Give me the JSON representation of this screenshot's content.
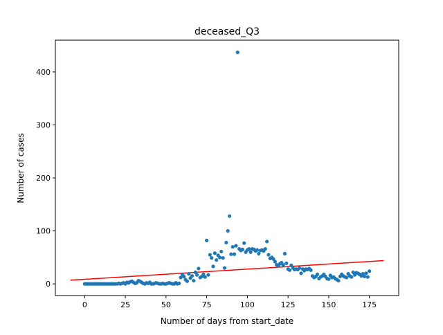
{
  "chart_data": {
    "type": "scatter",
    "title": "deceased_Q3",
    "xlabel": "Number of days from start_date",
    "ylabel": "Number of cases",
    "xlim": [
      -18,
      193
    ],
    "ylim": [
      -22,
      460
    ],
    "xticks": [
      0,
      25,
      50,
      75,
      100,
      125,
      150,
      175
    ],
    "yticks": [
      0,
      100,
      200,
      300,
      400
    ],
    "grid": false,
    "legend": "none",
    "colors": {
      "points": "#1f77b4",
      "trendline": "#ff0000",
      "axes": "#000000"
    },
    "series": [
      {
        "kind": "points",
        "x": [
          0,
          1,
          2,
          3,
          4,
          5,
          6,
          7,
          8,
          9,
          10,
          11,
          12,
          13,
          14,
          15,
          16,
          17,
          18,
          19,
          20,
          21,
          22,
          23,
          24,
          25,
          26,
          27,
          28,
          29,
          30,
          31,
          32,
          33,
          34,
          35,
          36,
          37,
          38,
          39,
          40,
          41,
          42,
          43,
          44,
          45,
          46,
          47,
          48,
          49,
          50,
          51,
          52,
          53,
          54,
          55,
          56,
          57,
          58,
          59,
          60,
          61,
          62,
          63,
          64,
          65,
          66,
          67,
          68,
          69,
          70,
          71,
          72,
          73,
          74,
          75,
          76,
          77,
          78,
          79,
          80,
          81,
          82,
          83,
          84,
          85,
          86,
          87,
          88,
          89,
          90,
          91,
          92,
          93,
          94,
          95,
          96,
          97,
          98,
          99,
          100,
          101,
          102,
          103,
          104,
          105,
          106,
          107,
          108,
          109,
          110,
          111,
          112,
          113,
          114,
          115,
          116,
          117,
          118,
          119,
          120,
          121,
          122,
          123,
          124,
          125,
          126,
          127,
          128,
          129,
          130,
          131,
          132,
          133,
          134,
          135,
          136,
          137,
          138,
          139,
          140,
          141,
          142,
          143,
          144,
          145,
          146,
          147,
          148,
          149,
          150,
          151,
          152,
          153,
          154,
          155,
          156,
          157,
          158,
          159,
          160,
          161,
          162,
          163,
          164,
          165,
          166,
          167,
          168,
          169,
          170,
          171,
          172,
          173,
          174,
          175
        ],
        "y": [
          0,
          0,
          0,
          0,
          0,
          0,
          0,
          0,
          0,
          0,
          0,
          0,
          0,
          0,
          0,
          0,
          0,
          0,
          0,
          0,
          0,
          1,
          0,
          1,
          2,
          0,
          3,
          2,
          4,
          5,
          3,
          1,
          2,
          6,
          5,
          3,
          1,
          0,
          2,
          1,
          3,
          0,
          0,
          1,
          2,
          1,
          0,
          0,
          1,
          0,
          0,
          1,
          2,
          1,
          0,
          0,
          2,
          0,
          1,
          12,
          18,
          14,
          8,
          5,
          19,
          11,
          15,
          6,
          22,
          17,
          29,
          12,
          14,
          18,
          13,
          82,
          17,
          55,
          49,
          33,
          58,
          45,
          54,
          50,
          61,
          49,
          30,
          78,
          100,
          128,
          56,
          70,
          56,
          72,
          437,
          66,
          63,
          65,
          77,
          60,
          64,
          66,
          60,
          66,
          65,
          62,
          64,
          57,
          63,
          64,
          62,
          66,
          80,
          55,
          48,
          50,
          47,
          42,
          36,
          34,
          38,
          40,
          36,
          57,
          39,
          28,
          26,
          35,
          30,
          27,
          28,
          27,
          30,
          20,
          28,
          25,
          28,
          27,
          29,
          26,
          15,
          12,
          14,
          18,
          10,
          13,
          15,
          18,
          14,
          10,
          9,
          16,
          12,
          13,
          10,
          8,
          6,
          14,
          18,
          15,
          13,
          12,
          19,
          15,
          13,
          22,
          17,
          21,
          20,
          18,
          15,
          19,
          14,
          20,
          13,
          24
        ]
      },
      {
        "kind": "trendline",
        "x": [
          -8.75,
          183.75
        ],
        "y": [
          7,
          44
        ]
      }
    ]
  }
}
